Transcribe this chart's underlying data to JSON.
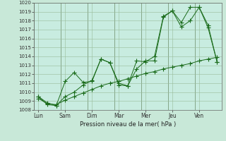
{
  "background_color": "#c8e8d8",
  "plot_bg_color": "#c8ece0",
  "grid_color": "#99bb99",
  "line_color": "#1a6b1a",
  "xlabel": "Pression niveau de la mer( hPa )",
  "ylim": [
    1008,
    1020
  ],
  "yticks": [
    1008,
    1009,
    1010,
    1011,
    1012,
    1013,
    1014,
    1015,
    1016,
    1017,
    1018,
    1019,
    1020
  ],
  "day_labels": [
    "Lun",
    "Sam",
    "Dim",
    "Mar",
    "Mer",
    "Jeu",
    "Ven"
  ],
  "n_days": 7,
  "pts_per_day": 3,
  "series1_x": [
    0,
    1,
    2,
    3,
    4,
    5,
    6,
    7,
    8,
    9,
    10,
    11,
    12,
    13,
    14,
    15,
    16,
    17,
    18,
    19,
    20
  ],
  "series1": [
    1009.5,
    1008.8,
    1008.5,
    1011.2,
    1012.2,
    1011.1,
    1011.2,
    1013.7,
    1013.3,
    1010.8,
    1010.7,
    1013.5,
    1013.4,
    1014.0,
    1018.5,
    1019.1,
    1017.3,
    1018.0,
    1019.5,
    1017.2,
    1013.4
  ],
  "series2_x": [
    0,
    1,
    2,
    3,
    4,
    5,
    6,
    7,
    8,
    9,
    10,
    11,
    12,
    13,
    14,
    15,
    16,
    17,
    18,
    19,
    20
  ],
  "series2": [
    1009.3,
    1008.7,
    1008.6,
    1009.1,
    1009.5,
    1009.9,
    1010.3,
    1010.7,
    1011.0,
    1011.2,
    1011.5,
    1011.8,
    1012.1,
    1012.3,
    1012.6,
    1012.8,
    1013.0,
    1013.2,
    1013.5,
    1013.7,
    1013.9
  ],
  "series3_x": [
    0,
    1,
    2,
    3,
    4,
    5,
    6,
    7,
    8,
    9,
    10,
    11,
    12,
    13,
    14,
    15,
    16,
    17,
    18,
    19,
    20
  ],
  "series3": [
    1009.5,
    1008.6,
    1008.5,
    1009.5,
    1010.0,
    1010.8,
    1011.3,
    1013.7,
    1013.3,
    1011.0,
    1010.7,
    1012.6,
    1013.5,
    1013.5,
    1018.4,
    1019.1,
    1017.8,
    1019.5,
    1019.5,
    1017.5,
    1013.4
  ]
}
